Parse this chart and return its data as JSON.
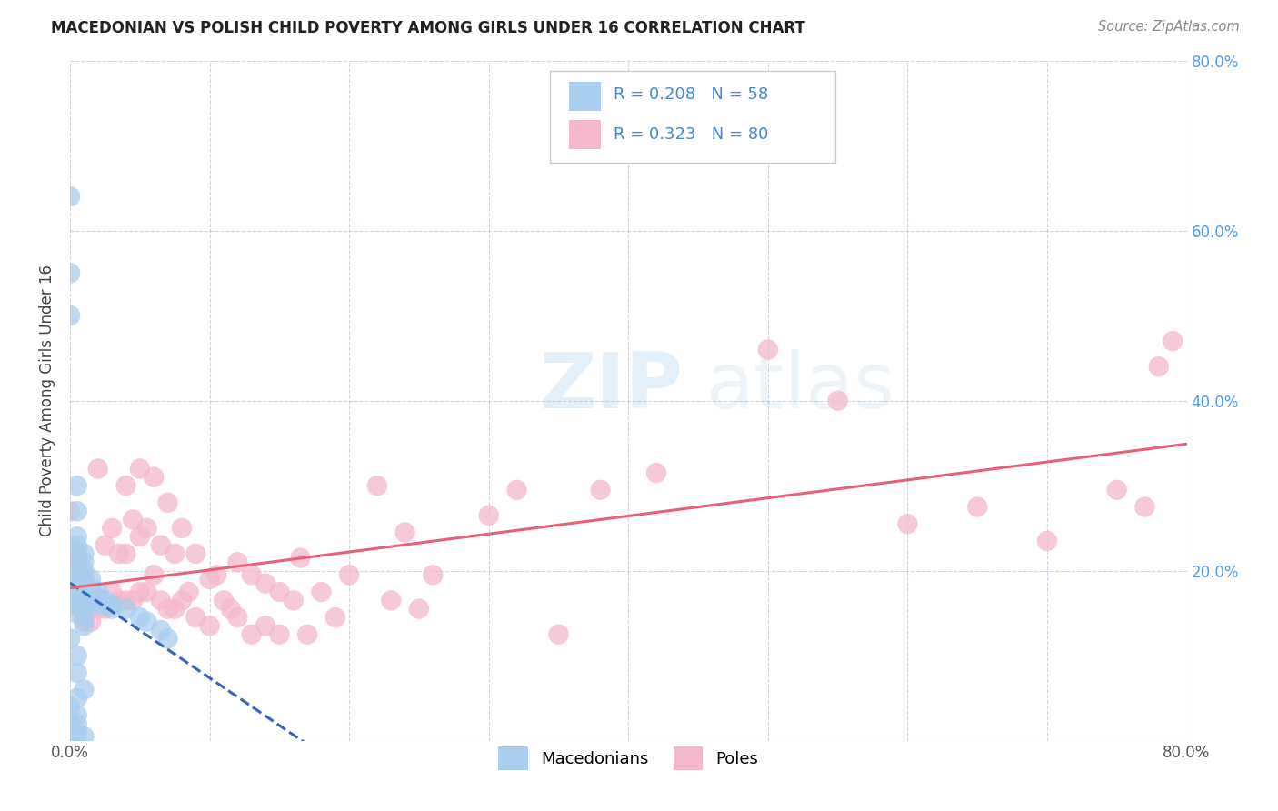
{
  "title": "MACEDONIAN VS POLISH CHILD POVERTY AMONG GIRLS UNDER 16 CORRELATION CHART",
  "source": "Source: ZipAtlas.com",
  "ylabel": "Child Poverty Among Girls Under 16",
  "xlim": [
    0,
    0.8
  ],
  "ylim": [
    0,
    0.8
  ],
  "color_macedonian": "#a8cef0",
  "color_polish": "#f5b8cb",
  "color_trendline_macedonian": "#3366bb",
  "color_trendline_polish": "#e8607a",
  "watermark_zip": "ZIP",
  "watermark_atlas": "atlas",
  "macedonian_x": [
    0.0,
    0.0,
    0.0,
    0.0,
    0.0,
    0.0,
    0.0,
    0.0,
    0.0,
    0.0,
    0.005,
    0.005,
    0.005,
    0.005,
    0.005,
    0.005,
    0.005,
    0.005,
    0.005,
    0.005,
    0.005,
    0.005,
    0.005,
    0.005,
    0.005,
    0.005,
    0.005,
    0.005,
    0.005,
    0.005,
    0.01,
    0.01,
    0.01,
    0.01,
    0.01,
    0.01,
    0.01,
    0.01,
    0.01,
    0.01,
    0.01,
    0.01,
    0.015,
    0.015,
    0.015,
    0.015,
    0.02,
    0.02,
    0.025,
    0.025,
    0.03,
    0.03,
    0.04,
    0.05,
    0.055,
    0.065,
    0.07,
    0.02
  ],
  "macedonian_y": [
    0.64,
    0.55,
    0.5,
    0.19,
    0.18,
    0.17,
    0.16,
    0.12,
    0.04,
    0.02,
    0.3,
    0.27,
    0.24,
    0.23,
    0.22,
    0.21,
    0.2,
    0.19,
    0.185,
    0.175,
    0.165,
    0.16,
    0.15,
    0.1,
    0.08,
    0.05,
    0.03,
    0.02,
    0.01,
    0.005,
    0.22,
    0.21,
    0.2,
    0.19,
    0.185,
    0.175,
    0.165,
    0.155,
    0.145,
    0.135,
    0.06,
    0.005,
    0.19,
    0.18,
    0.175,
    0.165,
    0.175,
    0.165,
    0.165,
    0.16,
    0.16,
    0.155,
    0.155,
    0.145,
    0.14,
    0.13,
    0.12,
    0.16
  ],
  "polish_x": [
    0.0,
    0.005,
    0.005,
    0.005,
    0.01,
    0.01,
    0.01,
    0.01,
    0.015,
    0.015,
    0.015,
    0.02,
    0.02,
    0.025,
    0.025,
    0.03,
    0.03,
    0.035,
    0.035,
    0.04,
    0.04,
    0.04,
    0.045,
    0.045,
    0.05,
    0.05,
    0.05,
    0.055,
    0.055,
    0.06,
    0.06,
    0.065,
    0.065,
    0.07,
    0.07,
    0.075,
    0.075,
    0.08,
    0.08,
    0.085,
    0.09,
    0.09,
    0.1,
    0.1,
    0.105,
    0.11,
    0.115,
    0.12,
    0.12,
    0.13,
    0.13,
    0.14,
    0.14,
    0.15,
    0.15,
    0.16,
    0.165,
    0.17,
    0.18,
    0.19,
    0.2,
    0.22,
    0.23,
    0.24,
    0.25,
    0.26,
    0.3,
    0.32,
    0.35,
    0.38,
    0.42,
    0.5,
    0.55,
    0.6,
    0.65,
    0.7,
    0.75,
    0.77,
    0.78,
    0.79
  ],
  "polish_y": [
    0.27,
    0.22,
    0.2,
    0.16,
    0.19,
    0.18,
    0.17,
    0.14,
    0.175,
    0.165,
    0.14,
    0.32,
    0.155,
    0.23,
    0.155,
    0.25,
    0.175,
    0.22,
    0.165,
    0.3,
    0.22,
    0.165,
    0.26,
    0.165,
    0.32,
    0.24,
    0.175,
    0.25,
    0.175,
    0.31,
    0.195,
    0.23,
    0.165,
    0.28,
    0.155,
    0.22,
    0.155,
    0.25,
    0.165,
    0.175,
    0.22,
    0.145,
    0.19,
    0.135,
    0.195,
    0.165,
    0.155,
    0.21,
    0.145,
    0.195,
    0.125,
    0.185,
    0.135,
    0.175,
    0.125,
    0.165,
    0.215,
    0.125,
    0.175,
    0.145,
    0.195,
    0.3,
    0.165,
    0.245,
    0.155,
    0.195,
    0.265,
    0.295,
    0.125,
    0.295,
    0.315,
    0.46,
    0.4,
    0.255,
    0.275,
    0.235,
    0.295,
    0.275,
    0.44,
    0.47
  ]
}
